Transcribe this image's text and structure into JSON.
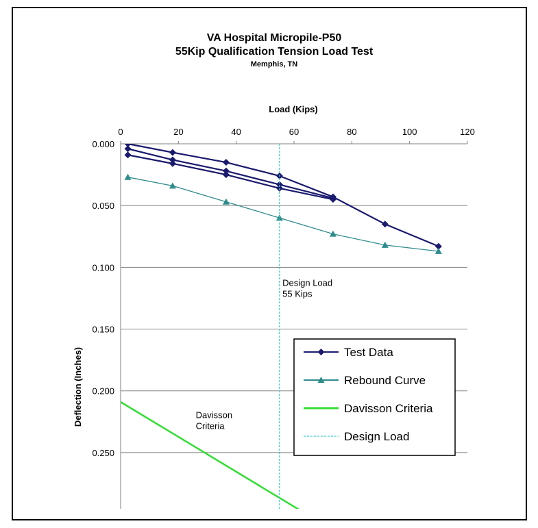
{
  "chart_data": {
    "type": "line",
    "title": "VA Hospital Micropile-P50",
    "subtitle": "55Kip Qualification Tension Load Test",
    "location": "Memphis, TN",
    "xlabel": "Load (Kips)",
    "ylabel": "Deflection (Inches)",
    "xlim": [
      0,
      120
    ],
    "ylim": [
      0,
      0.3
    ],
    "y_inverted": true,
    "x_axis_position": "top",
    "xticks": [
      "0",
      "20",
      "40",
      "60",
      "80",
      "100",
      "120"
    ],
    "yticks": [
      "0.000",
      "0.050",
      "0.100",
      "0.150",
      "0.200",
      "0.250"
    ],
    "grid": "horizontal",
    "legend_position": "bottom-right",
    "series": [
      {
        "name": "Test Data",
        "color": "#1a1a6e",
        "marker": "diamond",
        "points": [
          [
            2.5,
            0.009
          ],
          [
            18,
            0.016
          ],
          [
            36.5,
            0.025
          ],
          [
            55,
            0.036
          ],
          [
            73.5,
            0.045
          ],
          [
            73.5,
            0.044
          ],
          [
            55,
            0.033
          ],
          [
            36.5,
            0.022
          ],
          [
            18,
            0.013
          ],
          [
            2.5,
            0.004
          ],
          [
            2.5,
            0.0
          ],
          [
            18,
            0.007
          ],
          [
            36.5,
            0.015
          ],
          [
            55,
            0.026
          ],
          [
            73.5,
            0.043
          ],
          [
            91.5,
            0.065
          ],
          [
            110,
            0.083
          ]
        ]
      },
      {
        "name": "Rebound Curve",
        "color": "#2e8b8b",
        "marker": "triangle",
        "points": [
          [
            2.5,
            0.027
          ],
          [
            18,
            0.034
          ],
          [
            36.5,
            0.047
          ],
          [
            55,
            0.06
          ],
          [
            73.5,
            0.073
          ],
          [
            91.5,
            0.082
          ],
          [
            110,
            0.087
          ]
        ]
      },
      {
        "name": "Davisson Criteria",
        "color": "#33dd33",
        "marker": "none",
        "points": [
          [
            0,
            0.209
          ],
          [
            68,
            0.305
          ]
        ]
      },
      {
        "name": "Design Load",
        "color": "#33cccc",
        "marker": "none",
        "dashed": true,
        "points": [
          [
            55,
            0.0
          ],
          [
            55,
            0.3
          ]
        ]
      }
    ],
    "annotations": [
      {
        "lines": [
          "Design Load",
          "55 Kips"
        ],
        "x": 56,
        "y": 0.115
      },
      {
        "lines": [
          "Davisson",
          "Criteria"
        ],
        "x": 26,
        "y": 0.222
      }
    ]
  }
}
